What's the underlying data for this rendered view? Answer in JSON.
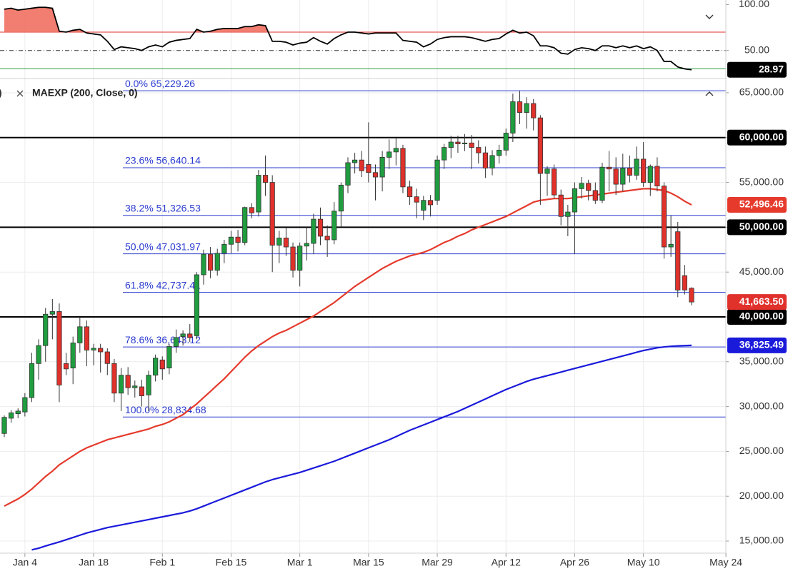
{
  "chart_data": [
    {
      "type": "line",
      "ylim": [
        21,
        105
      ],
      "yticks": [
        {
          "value": 100,
          "label": "100.00"
        },
        {
          "value": 50,
          "label": "50.00"
        }
      ],
      "levels": [
        {
          "value": 70,
          "color": "#e0312b",
          "dash": false
        },
        {
          "value": 50,
          "color": "#333333",
          "dash": true
        },
        {
          "value": 30,
          "color": "#2ea043",
          "dash": false
        }
      ],
      "overbought_fill": "#f07060",
      "series": [
        {
          "color": "#000000",
          "last_value_label": "28.97",
          "values": [
            95,
            96,
            94,
            95,
            96,
            97,
            97,
            96,
            71,
            70,
            72,
            73,
            69,
            68,
            67,
            60,
            51,
            54,
            53,
            52,
            50,
            54,
            56,
            54,
            59,
            61,
            62,
            63,
            73,
            70,
            71,
            73,
            74,
            74,
            74,
            76,
            76,
            78,
            77,
            60,
            60,
            59,
            56,
            58,
            59,
            64,
            60,
            57,
            63,
            67,
            70,
            70,
            69,
            68,
            69,
            69,
            69,
            69,
            61,
            60,
            59,
            54,
            57,
            62,
            64,
            65,
            65,
            65,
            64,
            62,
            60,
            62,
            63,
            68,
            72,
            69,
            70,
            66,
            55,
            55,
            53,
            47,
            46,
            51,
            53,
            52,
            50,
            55,
            55,
            53,
            55,
            53,
            55,
            52,
            54,
            50,
            38,
            38,
            32,
            30,
            28.97,
            null,
            null,
            null,
            null,
            null
          ]
        }
      ]
    },
    {
      "type": "candlestick",
      "legend_prefix": ")",
      "categories": [
        null,
        null,
        null,
        "Jan 4",
        null,
        null,
        null,
        null,
        null,
        null,
        null,
        null,
        null,
        "Jan 18",
        null,
        null,
        null,
        null,
        null,
        null,
        null,
        null,
        null,
        "Feb 1",
        null,
        null,
        null,
        null,
        null,
        null,
        null,
        null,
        null,
        "Feb 15",
        null,
        null,
        null,
        null,
        null,
        null,
        null,
        null,
        null,
        "Mar 1",
        null,
        null,
        null,
        null,
        null,
        null,
        null,
        null,
        null,
        "Mar 15",
        null,
        null,
        null,
        null,
        null,
        null,
        null,
        null,
        null,
        "Mar 29",
        null,
        null,
        null,
        null,
        null,
        null,
        null,
        null,
        null,
        "Apr 12",
        null,
        null,
        null,
        null,
        null,
        null,
        null,
        null,
        null,
        "Apr 26",
        null,
        null,
        null,
        null,
        null,
        null,
        null,
        null,
        null,
        "May 10",
        null,
        null,
        null,
        null,
        null,
        null,
        null,
        null,
        null,
        null,
        null,
        "May 24"
      ],
      "open": [
        27000,
        28700,
        29200,
        29400,
        31000,
        34800,
        36800,
        40300,
        40600,
        34800,
        34300,
        37100,
        38900,
        36300,
        36500,
        36100,
        34800,
        31500,
        33500,
        32100,
        32200,
        31300,
        33500,
        35200,
        34300,
        36700,
        37800,
        38100,
        37900,
        44700,
        47000,
        45200,
        47100,
        48100,
        48900,
        48300,
        52200,
        51700,
        55800,
        55000,
        48000,
        48800,
        47800,
        45200,
        47900,
        48200,
        50900,
        49000,
        48600,
        51800,
        54700,
        57200,
        57500,
        57000,
        56100,
        55600,
        57800,
        58400,
        58800,
        54500,
        53400,
        51900,
        53000,
        53000,
        57500,
        58900,
        59500,
        59300,
        59400,
        58900,
        58300,
        56600,
        58000,
        58600,
        60500,
        64000,
        62800,
        63800,
        62200,
        56000,
        56500,
        53600,
        51200,
        51700,
        54300,
        54900,
        54100,
        53000,
        56700,
        56500,
        54800,
        56600,
        55800,
        57600,
        55000,
        56800,
        54600,
        47800,
        49500,
        44600,
        43200,
        null,
        null,
        null,
        null,
        null
      ],
      "high": [
        29000,
        29600,
        29800,
        31500,
        36000,
        37500,
        41000,
        42000,
        41500,
        36000,
        37800,
        40000,
        39600,
        37000,
        37000,
        36500,
        35300,
        34300,
        34400,
        32900,
        33000,
        34000,
        35800,
        35600,
        37000,
        38600,
        38500,
        39200,
        45000,
        47500,
        47800,
        47600,
        48600,
        49600,
        49700,
        52300,
        52700,
        56400,
        58000,
        55800,
        49600,
        50000,
        48300,
        48300,
        50000,
        51500,
        52200,
        50200,
        52800,
        55000,
        57800,
        58300,
        58500,
        61700,
        57000,
        58500,
        59800,
        60000,
        59200,
        55200,
        54300,
        53500,
        53600,
        58000,
        59300,
        60200,
        60200,
        60400,
        60300,
        59700,
        59000,
        58600,
        59200,
        61000,
        64900,
        65229.26,
        64500,
        64300,
        62500,
        56800,
        57000,
        54200,
        52500,
        55000,
        55600,
        55300,
        55000,
        57200,
        58500,
        57800,
        58200,
        58000,
        59000,
        59500,
        57000,
        57800,
        55000,
        51300,
        50600,
        45800,
        43300,
        null,
        null,
        null,
        null,
        null
      ],
      "low": [
        26600,
        28200,
        28700,
        28900,
        30500,
        33000,
        35000,
        37500,
        30500,
        33500,
        32500,
        36000,
        34500,
        34600,
        33800,
        33500,
        30500,
        29500,
        31300,
        31000,
        30000,
        29500,
        32800,
        33000,
        33600,
        36000,
        36800,
        37200,
        37500,
        43600,
        44300,
        44600,
        46000,
        47100,
        47300,
        48000,
        51000,
        51200,
        53500,
        45000,
        46000,
        46800,
        44400,
        43400,
        46300,
        47000,
        48000,
        46700,
        48100,
        50000,
        53800,
        56000,
        55600,
        55000,
        53000,
        54000,
        56500,
        56900,
        53800,
        52500,
        51000,
        50800,
        51200,
        52500,
        56500,
        57700,
        58300,
        58500,
        56500,
        57100,
        55500,
        55800,
        57100,
        58000,
        59500,
        61500,
        61000,
        60800,
        52500,
        53500,
        53200,
        50200,
        49000,
        47000,
        53200,
        53000,
        52600,
        52700,
        54000,
        53600,
        54000,
        55000,
        55300,
        54500,
        53500,
        54000,
        46500,
        46700,
        42200,
        42500,
        41300,
        null,
        null,
        null,
        null,
        null
      ],
      "close": [
        28800,
        29300,
        29500,
        31000,
        34800,
        36800,
        40300,
        40600,
        32400,
        34200,
        37100,
        38900,
        36300,
        36500,
        36100,
        34800,
        31500,
        33500,
        32100,
        32300,
        31200,
        33500,
        35400,
        34200,
        36700,
        37700,
        38100,
        37700,
        44700,
        47000,
        45200,
        47100,
        48100,
        48900,
        48300,
        52200,
        51600,
        55800,
        55000,
        48000,
        48800,
        47800,
        45200,
        47900,
        48200,
        50900,
        49000,
        48600,
        51800,
        54700,
        57200,
        57500,
        56300,
        56100,
        55600,
        57800,
        58400,
        58800,
        54500,
        53400,
        52800,
        53000,
        52500,
        57500,
        58900,
        59500,
        59300,
        59400,
        58900,
        58300,
        56600,
        58000,
        58600,
        60500,
        64000,
        62800,
        63800,
        62200,
        56000,
        56500,
        53600,
        51200,
        51700,
        54300,
        54900,
        54100,
        53000,
        56700,
        56500,
        54800,
        56600,
        55800,
        57600,
        55000,
        56800,
        54600,
        47800,
        48100,
        43000,
        43000,
        41663.5,
        null,
        null,
        null,
        null,
        null
      ],
      "close_label": "41,663.50",
      "up_color": "#1f9d3f",
      "down_color": "#e0312b",
      "series": [
        {
          "color": "#e53a2c",
          "last_value_label": "52,496.46",
          "values": [
            18900,
            19300,
            19700,
            20200,
            20800,
            21500,
            22200,
            22800,
            23500,
            24000,
            24500,
            25000,
            25400,
            25700,
            26000,
            26300,
            26500,
            26700,
            26900,
            27100,
            27300,
            27500,
            27800,
            28000,
            28300,
            28700,
            29100,
            29700,
            30300,
            31000,
            31700,
            32400,
            33100,
            33900,
            34700,
            35500,
            36200,
            36800,
            37300,
            37800,
            38200,
            38500,
            38900,
            39300,
            39700,
            40100,
            40600,
            41100,
            41600,
            42200,
            42800,
            43400,
            43900,
            44400,
            44900,
            45400,
            45800,
            46200,
            46500,
            46800,
            47000,
            47200,
            47500,
            47900,
            48300,
            48600,
            49000,
            49300,
            49700,
            50000,
            50300,
            50600,
            50900,
            51200,
            51600,
            52000,
            52400,
            52800,
            53000,
            53100,
            53200,
            53200,
            53200,
            53300,
            53400,
            53500,
            53600,
            53700,
            53800,
            53900,
            54000,
            54100,
            54200,
            54300,
            54300,
            54200,
            54100,
            53800,
            53400,
            52900,
            52496.46,
            null,
            null,
            null,
            null,
            null
          ]
        },
        {
          "name": "MAEXP (200, Close, 0)",
          "color": "#1a1adb",
          "last_value_label": "36,825.49",
          "values": [
            null,
            null,
            null,
            null,
            14020,
            14200,
            14450,
            14680,
            14900,
            15150,
            15400,
            15650,
            15900,
            16100,
            16300,
            16500,
            16650,
            16800,
            16950,
            17100,
            17250,
            17400,
            17550,
            17700,
            17850,
            18000,
            18150,
            18350,
            18600,
            18900,
            19200,
            19500,
            19800,
            20100,
            20400,
            20700,
            21000,
            21300,
            21600,
            21850,
            22050,
            22250,
            22450,
            22650,
            22900,
            23150,
            23400,
            23650,
            23900,
            24200,
            24500,
            24800,
            25100,
            25400,
            25700,
            26000,
            26300,
            26650,
            27000,
            27350,
            27650,
            27950,
            28250,
            28550,
            28850,
            29150,
            29450,
            29800,
            30150,
            30500,
            30850,
            31200,
            31550,
            31900,
            32200,
            32500,
            32800,
            33050,
            33250,
            33450,
            33650,
            33850,
            34050,
            34250,
            34450,
            34650,
            34850,
            35050,
            35250,
            35450,
            35650,
            35850,
            36050,
            36250,
            36400,
            36550,
            36650,
            36720,
            36770,
            36800,
            36825.49,
            null,
            null,
            null,
            null,
            null
          ]
        }
      ],
      "ylim": [
        13650,
        66430
      ],
      "yticks": [
        {
          "value": 65000,
          "label": "65,000.00"
        },
        {
          "value": 60000,
          "label": "60,000.00"
        },
        {
          "value": 55000,
          "label": "55,000.00"
        },
        {
          "value": 50000,
          "label": "50,000.00"
        },
        {
          "value": 45000,
          "label": "45,000.00"
        },
        {
          "value": 40000,
          "label": "40,000.00"
        },
        {
          "value": 35000,
          "label": "35,000.00"
        },
        {
          "value": 30000,
          "label": "30,000.00"
        },
        {
          "value": 25000,
          "label": "25,000.00"
        },
        {
          "value": 20000,
          "label": "20,000.00"
        },
        {
          "value": 15000,
          "label": "15,000.00"
        }
      ],
      "hlines": [
        60000,
        50000,
        40000
      ],
      "fib_color": "#2b3ccf",
      "fib_levels": [
        {
          "value": 65229.26,
          "label": "0.0% 65,229.26"
        },
        {
          "value": 56640.14,
          "label": "23.6% 56,640.14"
        },
        {
          "value": 51326.53,
          "label": "38.2% 51,326.53"
        },
        {
          "value": 47031.97,
          "label": "50.0% 47,031.97"
        },
        {
          "value": 42737.41,
          "label": "61.8% 42,737.41"
        },
        {
          "value": 36643.12,
          "label": "78.6% 36,643.12"
        },
        {
          "value": 28834.68,
          "label": "100.0% 28,834.68"
        }
      ],
      "grid": true
    }
  ]
}
